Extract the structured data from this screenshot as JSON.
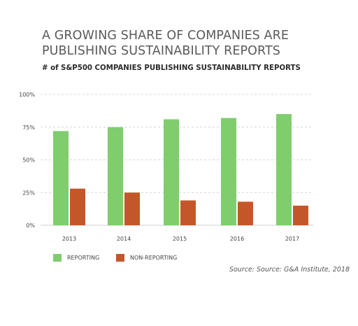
{
  "title": "A GROWING SHARE OF COMPANIES ARE PUBLISHING SUSTAINABILITY REPORTS",
  "subtitle": "# of S&P500 COMPANIES PUBLISHING SUSTAINABILITY REPORTS",
  "source": "Source: Source: G&A Institute, 2018",
  "colors": {
    "reporting": "#7fcd6d",
    "non_reporting": "#c4572a",
    "grid": "#d6d6d6",
    "axis": "#cfcfcf"
  },
  "chart_data": {
    "type": "bar",
    "categories": [
      "2013",
      "2014",
      "2015",
      "2016",
      "2017"
    ],
    "series": [
      {
        "name": "REPORTING",
        "values": [
          72,
          75,
          81,
          82,
          85
        ]
      },
      {
        "name": "NON-REPORTING",
        "values": [
          28,
          25,
          19,
          18,
          15
        ]
      }
    ],
    "yticks": [
      "0%",
      "25%",
      "50%",
      "75%",
      "100%"
    ],
    "ylim": [
      0,
      100
    ],
    "grid": true,
    "legend_position": "bottom-left"
  }
}
